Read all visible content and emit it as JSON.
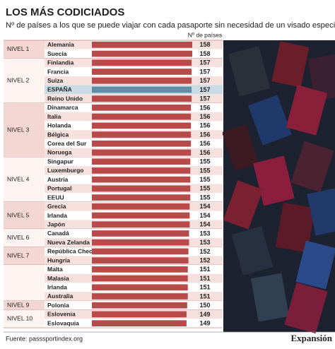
{
  "title": "LOS MÁS CODICIADOS",
  "subtitle": "Nº de países a los que se puede viajar con cada pasaporte sin necesidad de un visado especial.",
  "source": "Fuente: passsportindex.org",
  "brand": "Expansión",
  "chart_data": {
    "type": "bar",
    "column_header": "Nº de países",
    "categories": [
      "Alemania",
      "Suecia",
      "Finlandia",
      "Francia",
      "Suiza",
      "ESPAÑA",
      "Reino Unido",
      "Dinamarca",
      "Italia",
      "Holanda",
      "Bélgica",
      "Corea del Sur",
      "Noruega",
      "Singapur",
      "Luxemburgo",
      "Austria",
      "Portugal",
      "EEUU",
      "Grecia",
      "Irlanda",
      "Japón",
      "Canadá",
      "Nueva Zelanda",
      "República Checa",
      "Hungría",
      "Malta",
      "Malasia",
      "Irlanda",
      "Australia",
      "Polonia",
      "Eslovenia",
      "Eslovaquia"
    ],
    "values": [
      158,
      158,
      157,
      157,
      157,
      157,
      157,
      156,
      156,
      156,
      156,
      156,
      156,
      155,
      155,
      155,
      155,
      155,
      154,
      154,
      154,
      153,
      153,
      152,
      152,
      151,
      151,
      151,
      151,
      150,
      149,
      149
    ],
    "colors": [
      "#b84a4a",
      "#b84a4a",
      "#b84a4a",
      "#b84a4a",
      "#b84a4a",
      "#5e8ea6",
      "#b84a4a",
      "#b84a4a",
      "#b84a4a",
      "#b84a4a",
      "#b84a4a",
      "#b84a4a",
      "#b84a4a",
      "#b84a4a",
      "#b84a4a",
      "#b84a4a",
      "#b84a4a",
      "#b84a4a",
      "#b84a4a",
      "#b84a4a",
      "#b84a4a",
      "#b84a4a",
      "#b84a4a",
      "#b84a4a",
      "#b84a4a",
      "#b84a4a",
      "#b84a4a",
      "#b84a4a",
      "#b84a4a",
      "#b84a4a",
      "#b84a4a",
      "#b84a4a"
    ],
    "groups": [
      {
        "label": "NIVEL 1",
        "size": 2
      },
      {
        "label": "NIVEL 2",
        "size": 5
      },
      {
        "label": "NIVEL 3",
        "size": 6
      },
      {
        "label": "NIVEL 4",
        "size": 5
      },
      {
        "label": "NIVEL 5",
        "size": 3
      },
      {
        "label": "NIVEL 6",
        "size": 2
      },
      {
        "label": "NIVEL 7",
        "size": 2
      },
      {
        "label": null,
        "size": 4
      },
      {
        "label": "NIVEL 9",
        "size": 1
      },
      {
        "label": "NIVEL 10",
        "size": 2
      }
    ]
  }
}
